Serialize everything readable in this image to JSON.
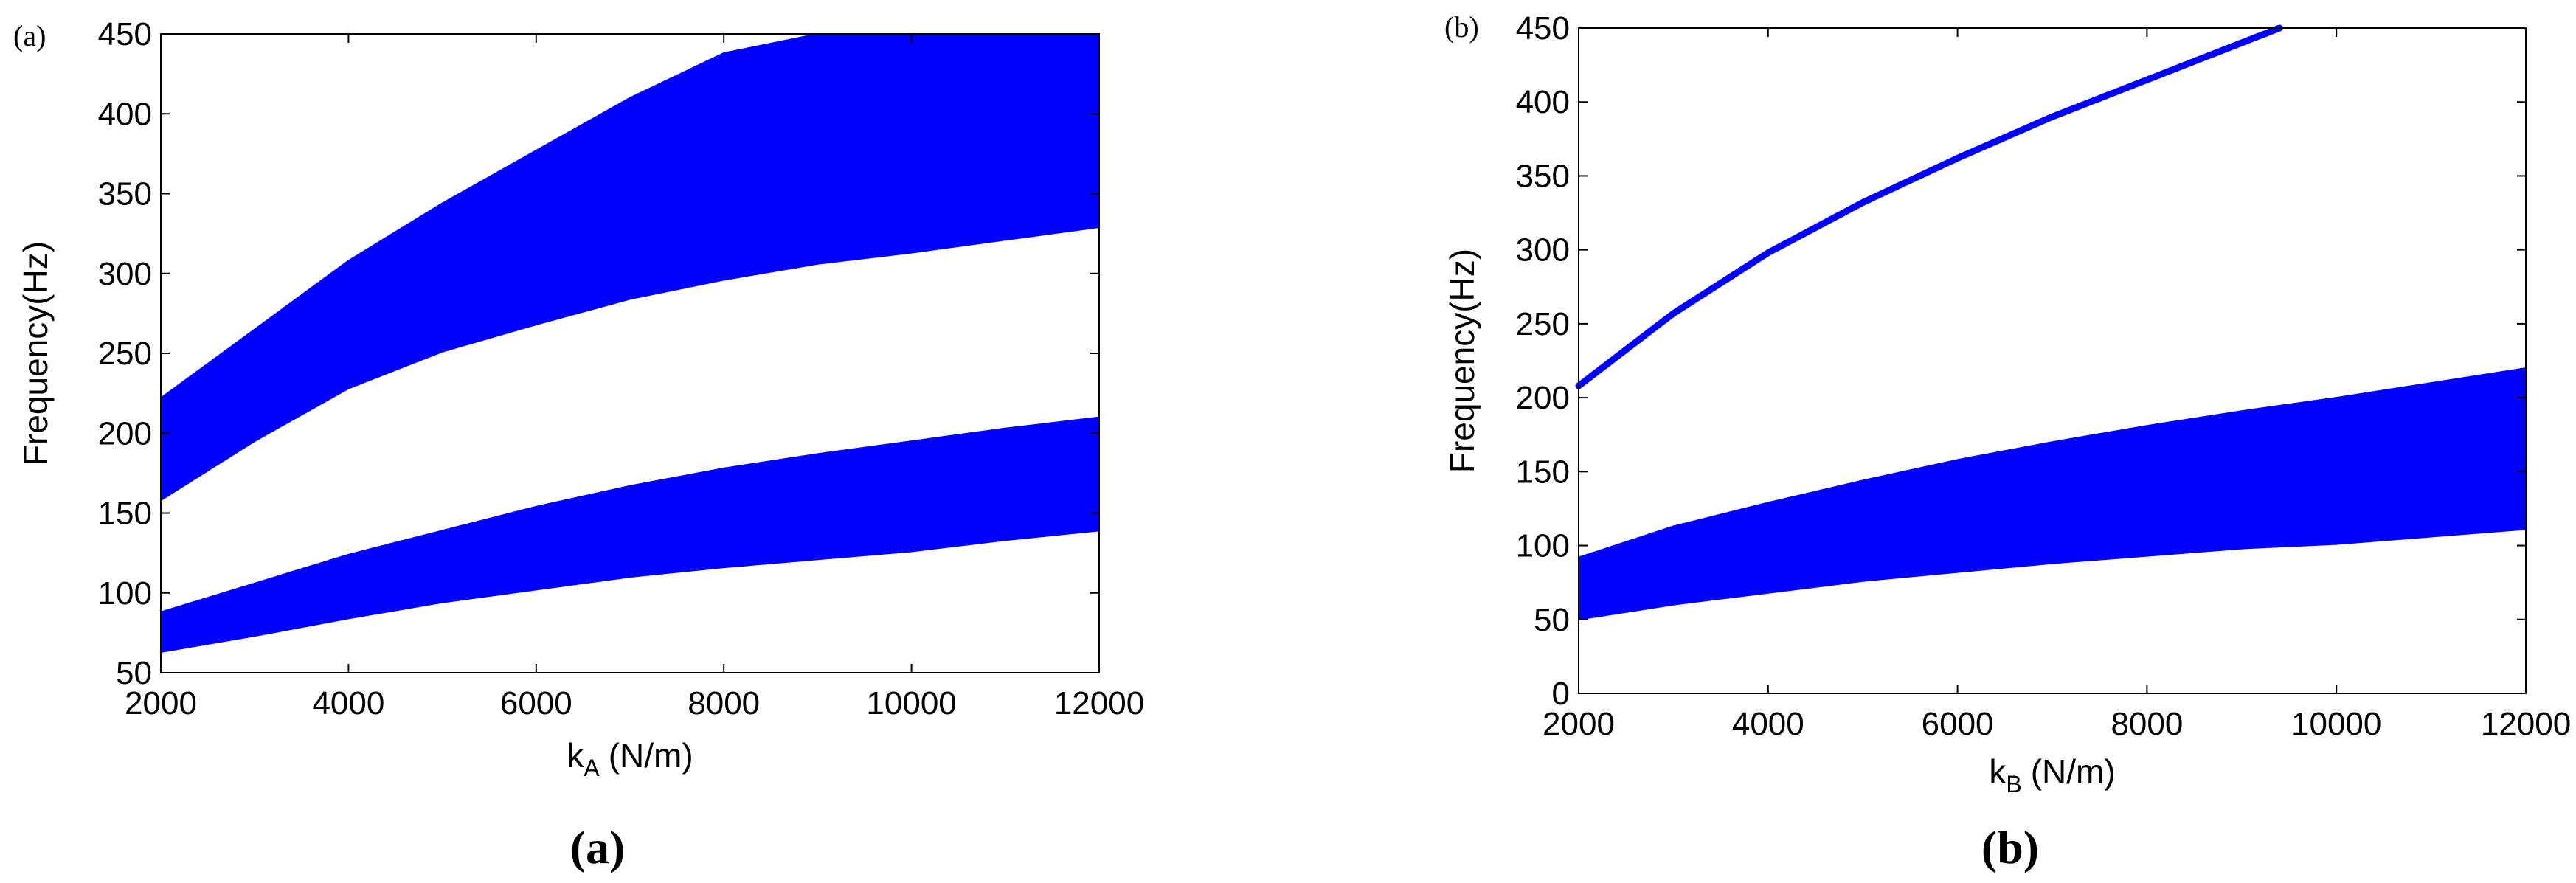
{
  "chart_data": [
    {
      "type": "area",
      "panel_tag": "(a)",
      "caption": "(a)",
      "xlabel": {
        "main": "k",
        "sub": "A",
        "unit": "(N/m)"
      },
      "ylabel": "Frequency(Hz)",
      "xlim": [
        2000,
        12000
      ],
      "ylim": [
        50,
        450
      ],
      "xticks": [
        2000,
        4000,
        6000,
        8000,
        10000,
        12000
      ],
      "yticks": [
        50,
        100,
        150,
        200,
        250,
        300,
        350,
        400,
        450
      ],
      "grid": false,
      "color": "#0000ff",
      "series": [
        {
          "x": [
            2000,
            3000,
            4000,
            5000,
            6000,
            7000,
            8000,
            9000,
            10000,
            11000,
            12000
          ],
          "lower": [
            63,
            73,
            84,
            94,
            102,
            110,
            116,
            121,
            126,
            133,
            139
          ],
          "upper": [
            88,
            106,
            124,
            139,
            154,
            167,
            178,
            187,
            195,
            203,
            210
          ]
        },
        {
          "x": [
            2000,
            3000,
            4000,
            5000,
            6000,
            7000,
            8000,
            9000,
            10000,
            11000,
            12000
          ],
          "lower": [
            158,
            195,
            228,
            251,
            268,
            284,
            296,
            306,
            313,
            321,
            329
          ],
          "upper": [
            222,
            265,
            308,
            344,
            377,
            410,
            438,
            450,
            450,
            450,
            450
          ]
        }
      ]
    },
    {
      "type": "area",
      "panel_tag": "(b)",
      "caption": "(b)",
      "xlabel": {
        "main": "k",
        "sub": "B",
        "unit": "(N/m)"
      },
      "ylabel": "Frequency(Hz)",
      "xlim": [
        2000,
        12000
      ],
      "ylim": [
        0,
        450
      ],
      "xticks": [
        2000,
        4000,
        6000,
        8000,
        10000,
        12000
      ],
      "yticks": [
        0,
        50,
        100,
        150,
        200,
        250,
        300,
        350,
        400,
        450
      ],
      "grid": false,
      "color": "#0000ff",
      "series": [
        {
          "x": [
            2000,
            3000,
            4000,
            5000,
            6000,
            7000,
            8000,
            9000,
            10000,
            11000,
            12000
          ],
          "lower": [
            50,
            60,
            68,
            76,
            82,
            88,
            93,
            98,
            101,
            106,
            111
          ],
          "upper": [
            92,
            113,
            129,
            144,
            158,
            170,
            181,
            191,
            200,
            210,
            220
          ]
        }
      ],
      "lines": [
        {
          "x": [
            2000,
            3000,
            4000,
            5000,
            6000,
            7000,
            8000,
            9000,
            9400
          ],
          "y": [
            208,
            257,
            298,
            332,
            362,
            390,
            415,
            440,
            450
          ]
        }
      ]
    }
  ]
}
